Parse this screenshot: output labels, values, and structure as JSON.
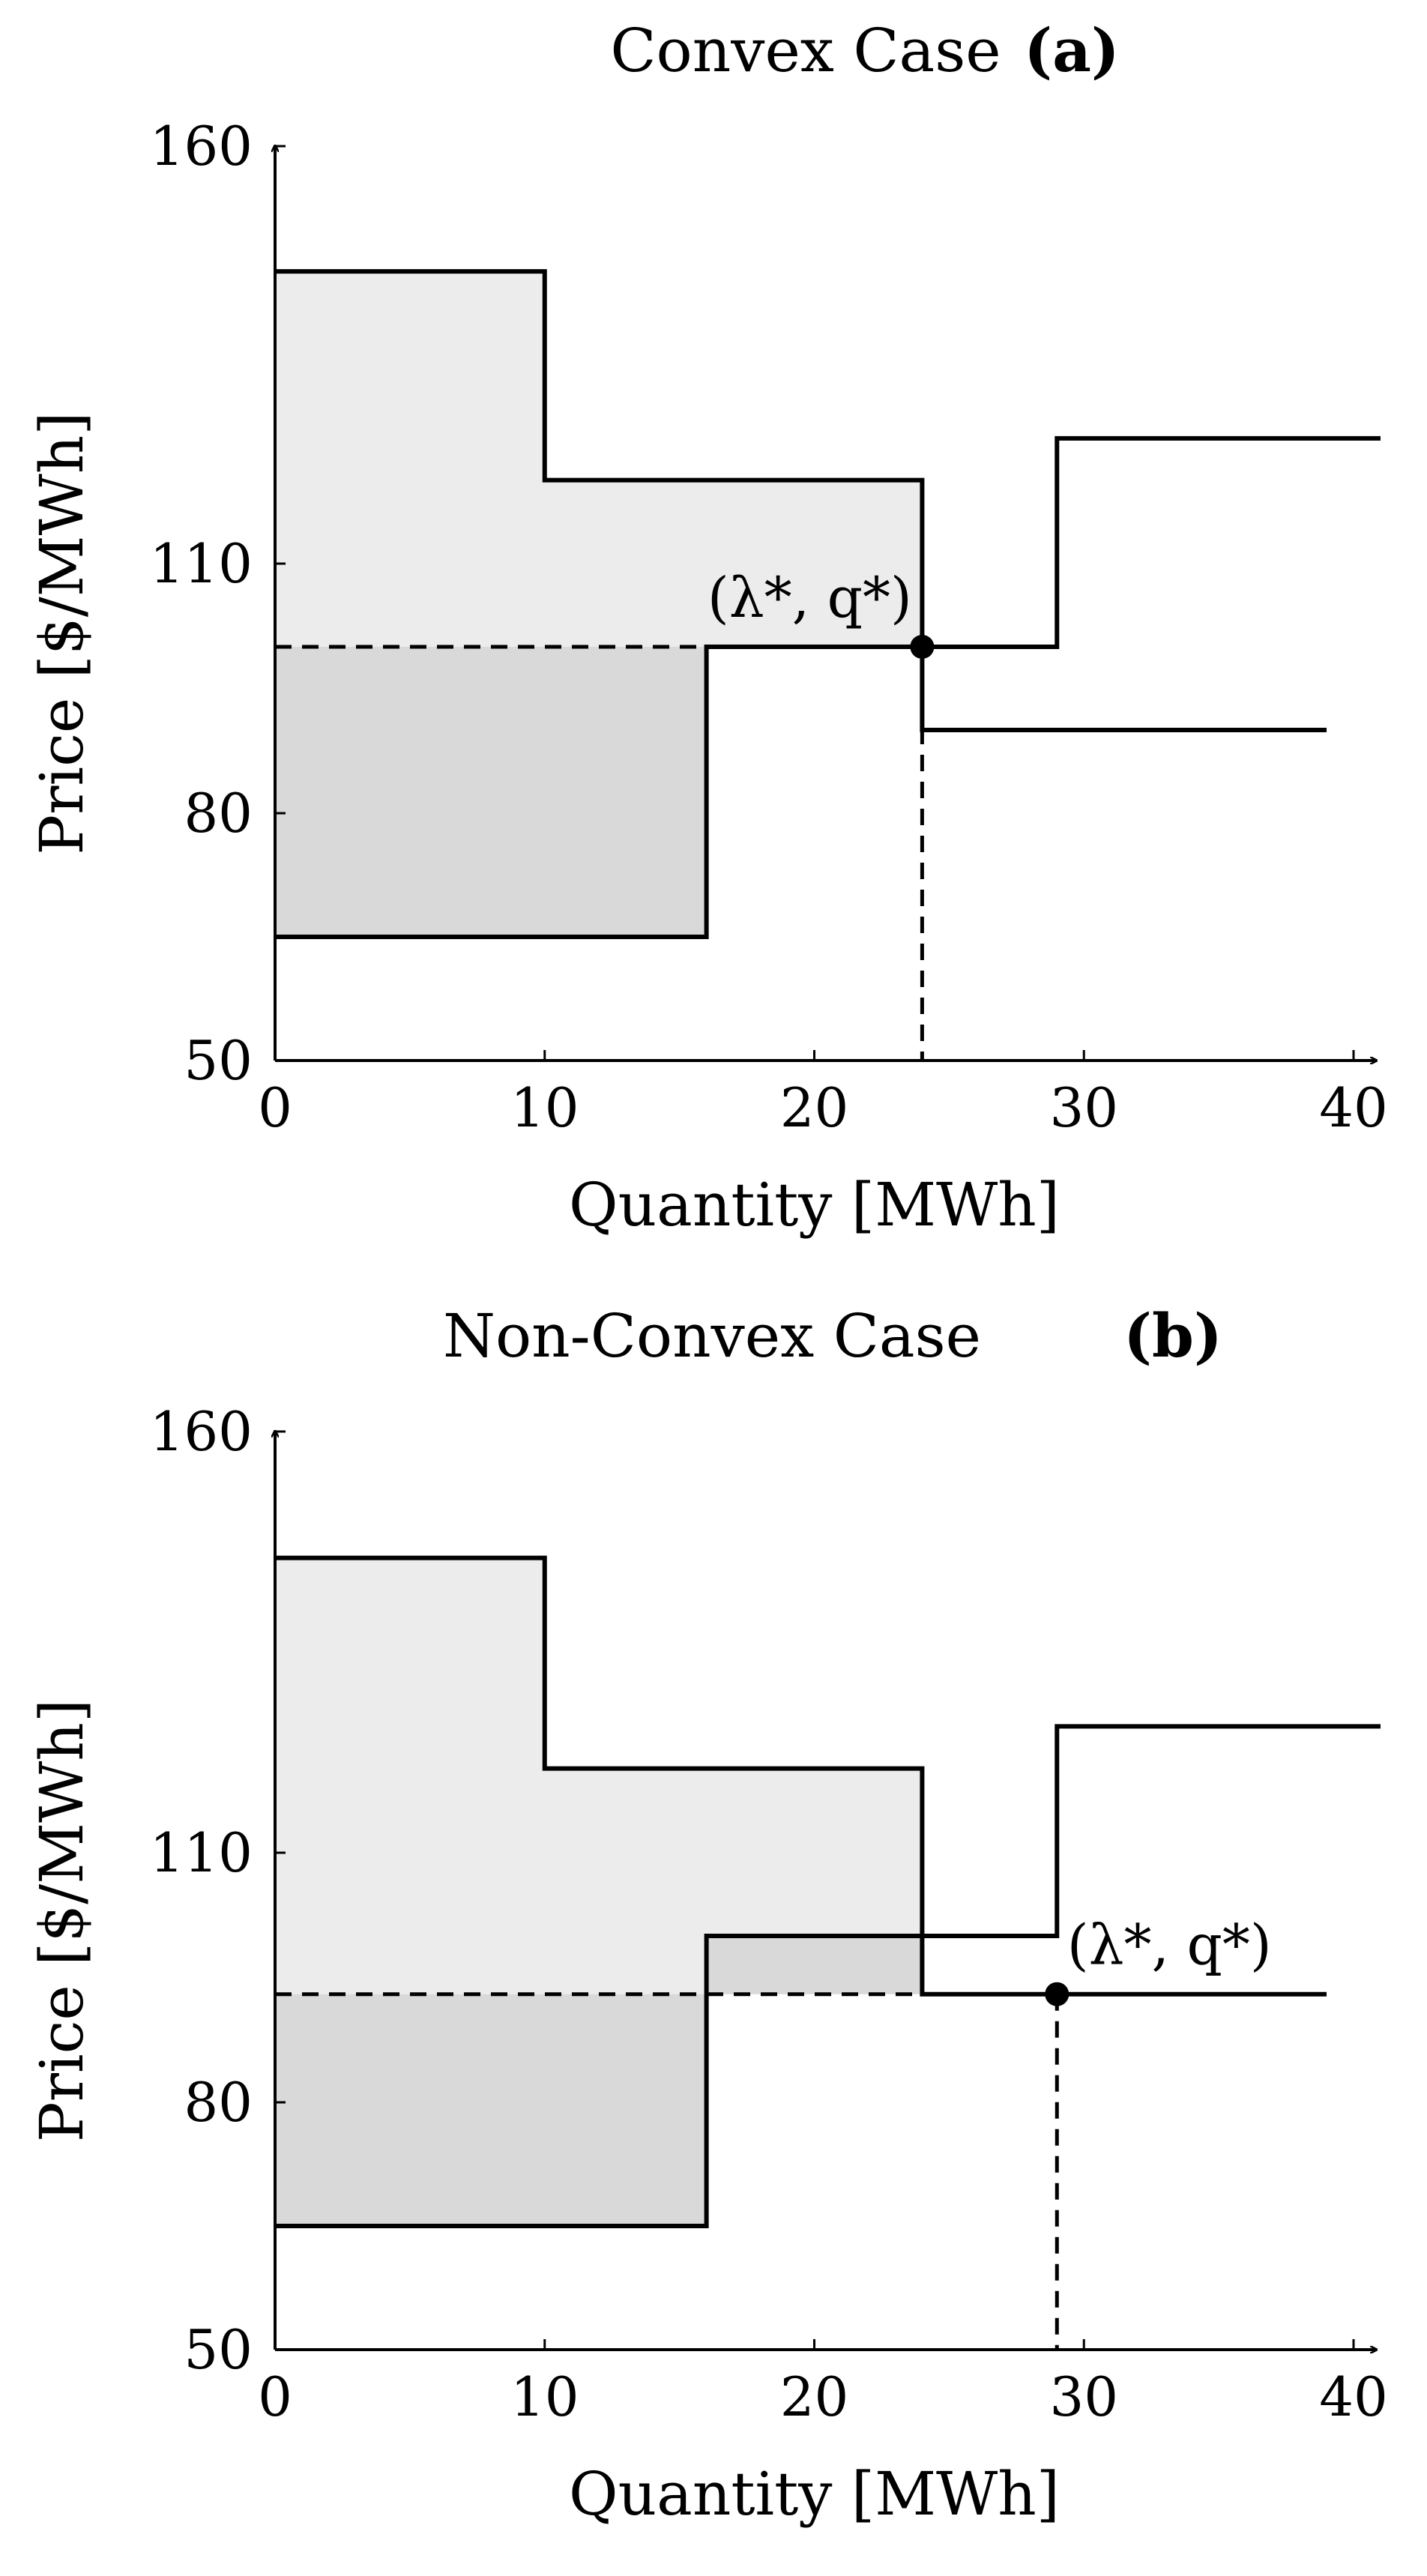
{
  "chart_data": [
    {
      "type": "step",
      "title": "Convex Case",
      "panel_label": "(a)",
      "xlabel": "Quantity [MWh]",
      "ylabel": "Price [$/MWh]",
      "xlim": [
        0,
        41
      ],
      "ylim": [
        50,
        160
      ],
      "xticks": [
        "0",
        "10",
        "20",
        "30",
        "40"
      ],
      "yticks": [
        "50",
        "80",
        "110",
        "160"
      ],
      "series": [
        {
          "role": "demand",
          "steps": [
            {
              "x0": 0,
              "x1": 10,
              "y": 145
            },
            {
              "x0": 10,
              "x1": 24,
              "y": 120
            },
            {
              "x0": 24,
              "x1": 39,
              "y": 90
            }
          ]
        },
        {
          "role": "supply",
          "steps": [
            {
              "x0": 0,
              "x1": 16,
              "y": 65
            },
            {
              "x0": 16,
              "x1": 29,
              "y": 100
            },
            {
              "x0": 29,
              "x1": 41,
              "y": 125
            }
          ]
        }
      ],
      "equilibrium": {
        "label": "(λ*, q*)",
        "x": 24,
        "y": 100
      },
      "colors": {
        "consumer_surplus": "#ececec",
        "producer_surplus": "#d9d9d9",
        "line": "#000000"
      }
    },
    {
      "type": "step",
      "title": "Non-Convex Case",
      "panel_label": "(b)",
      "xlabel": "Quantity [MWh]",
      "ylabel": "Price [$/MWh]",
      "xlim": [
        0,
        41
      ],
      "ylim": [
        50,
        160
      ],
      "xticks": [
        "0",
        "10",
        "20",
        "30",
        "40"
      ],
      "yticks": [
        "50",
        "80",
        "110",
        "160"
      ],
      "series": [
        {
          "role": "demand",
          "steps": [
            {
              "x0": 0,
              "x1": 10,
              "y": 145
            },
            {
              "x0": 10,
              "x1": 24,
              "y": 120
            },
            {
              "x0": 24,
              "x1": 39,
              "y": 93
            }
          ]
        },
        {
          "role": "supply",
          "steps": [
            {
              "x0": 0,
              "x1": 16,
              "y": 65
            },
            {
              "x0": 16,
              "x1": 29,
              "y": 100
            },
            {
              "x0": 29,
              "x1": 41,
              "y": 125
            }
          ]
        }
      ],
      "equilibrium": {
        "label": "(λ*, q*)",
        "x": 29,
        "y": 93
      },
      "colors": {
        "consumer_surplus": "#ececec",
        "producer_surplus": "#d9d9d9",
        "line": "#000000"
      }
    }
  ]
}
